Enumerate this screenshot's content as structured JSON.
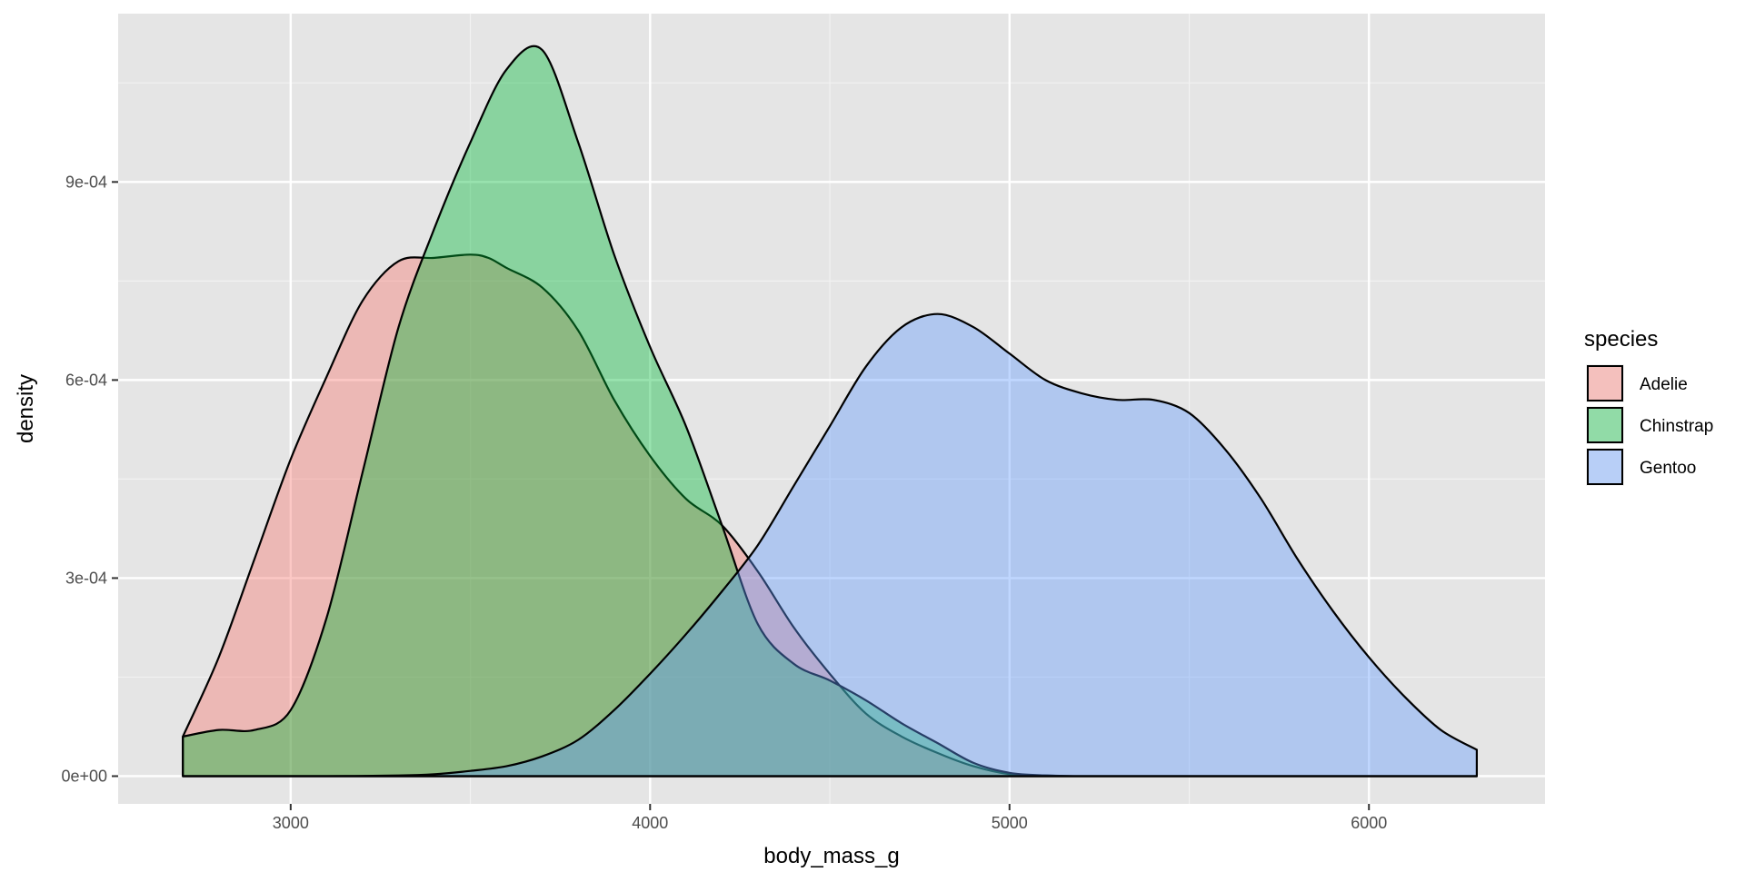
{
  "chart_data": {
    "type": "area",
    "subtype": "density",
    "title": "",
    "xlabel": "body_mass_g",
    "ylabel": "density",
    "xlim": [
      2520,
      6490
    ],
    "ylim": [
      -4.2e-05,
      0.001155
    ],
    "x_ticks": [
      3000,
      4000,
      5000,
      6000
    ],
    "x_tick_labels": [
      "3000",
      "4000",
      "5000",
      "6000"
    ],
    "y_ticks": [
      0,
      0.0003,
      0.0006,
      0.0009
    ],
    "y_tick_labels": [
      "0e+00",
      "3e-04",
      "6e-04",
      "9e-04"
    ],
    "grid": true,
    "legend": {
      "title": "species",
      "position": "right",
      "entries": [
        "Adelie",
        "Chinstrap",
        "Gentoo"
      ]
    },
    "series": [
      {
        "name": "Adelie",
        "color": "#F8766D",
        "x": [
          2700,
          2800,
          2900,
          3000,
          3100,
          3200,
          3300,
          3400,
          3500,
          3550,
          3600,
          3700,
          3800,
          3900,
          4000,
          4100,
          4200,
          4300,
          4400,
          4500,
          4600,
          4700,
          4800,
          4900,
          5000,
          5100,
          5200,
          5300,
          5400,
          5500,
          5600,
          5700,
          5800,
          5900,
          6000,
          6100,
          6200,
          6300
        ],
        "y": [
          6e-05,
          0.00018,
          0.00033,
          0.00048,
          0.000605,
          0.00072,
          0.00078,
          0.000785,
          0.00079,
          0.000785,
          0.00077,
          0.00074,
          0.000675,
          0.00057,
          0.000485,
          0.00042,
          0.00038,
          0.00031,
          0.000225,
          0.000155,
          9.5e-05,
          6e-05,
          3.5e-05,
          1.5e-05,
          3e-06,
          1e-06,
          0,
          0,
          0,
          0,
          0,
          0,
          0,
          0,
          0,
          0,
          0,
          0
        ]
      },
      {
        "name": "Chinstrap",
        "color": "#00BA38",
        "x": [
          2700,
          2800,
          2900,
          3000,
          3100,
          3200,
          3300,
          3400,
          3500,
          3600,
          3700,
          3800,
          3900,
          4000,
          4100,
          4200,
          4300,
          4400,
          4500,
          4600,
          4700,
          4800,
          4900,
          5000,
          5100,
          5200,
          5300,
          5400,
          5500,
          5600,
          5700,
          5800,
          5900,
          6000,
          6100,
          6200,
          6300
        ],
        "y": [
          6e-05,
          7e-05,
          7e-05,
          0.0001,
          0.00024,
          0.00046,
          0.00068,
          0.00083,
          0.00096,
          0.00107,
          0.0011,
          0.00096,
          0.00079,
          0.00065,
          0.00053,
          0.00038,
          0.00023,
          0.00017,
          0.000145,
          0.000115,
          8e-05,
          5e-05,
          2e-05,
          5e-06,
          1e-06,
          0,
          0,
          0,
          0,
          0,
          0,
          0,
          0,
          0,
          0,
          0,
          0
        ]
      },
      {
        "name": "Gentoo",
        "color": "#619CFF",
        "x": [
          2700,
          2900,
          3100,
          3300,
          3400,
          3500,
          3600,
          3700,
          3800,
          3900,
          4000,
          4100,
          4200,
          4300,
          4400,
          4500,
          4600,
          4700,
          4800,
          4900,
          5000,
          5100,
          5200,
          5300,
          5400,
          5500,
          5600,
          5700,
          5800,
          5900,
          6000,
          6100,
          6200,
          6300
        ],
        "y": [
          0,
          0,
          0,
          1e-06,
          3e-06,
          8e-06,
          1.5e-05,
          3e-05,
          5.5e-05,
          0.0001,
          0.000155,
          0.000215,
          0.00028,
          0.00035,
          0.00044,
          0.00053,
          0.00062,
          0.00068,
          0.0007,
          0.00068,
          0.00064,
          0.0006,
          0.00058,
          0.00057,
          0.00057,
          0.00055,
          0.000495,
          0.00042,
          0.00033,
          0.00025,
          0.00018,
          0.00012,
          7e-05,
          4e-05
        ]
      }
    ]
  }
}
